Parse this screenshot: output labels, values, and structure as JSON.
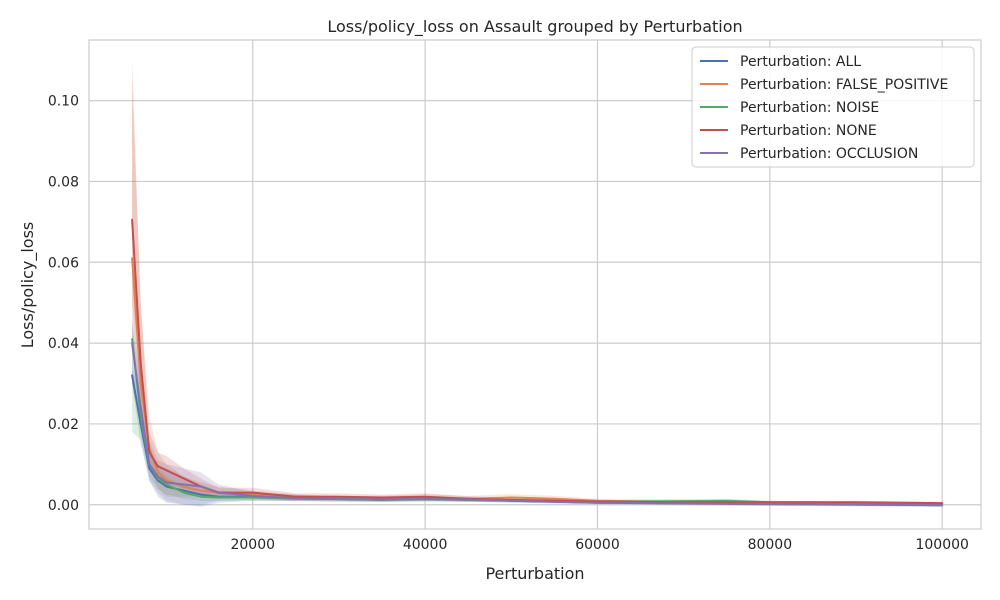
{
  "chart_data": {
    "type": "line",
    "title": "Loss/policy_loss on Assault grouped by Perturbation",
    "xlabel": "Perturbation",
    "ylabel": "Loss/policy_loss",
    "xlim": [
      1000,
      104500
    ],
    "ylim": [
      -0.006,
      0.115
    ],
    "xticks": [
      20000,
      40000,
      60000,
      80000,
      100000
    ],
    "xtick_labels": [
      "20000",
      "40000",
      "60000",
      "80000",
      "100000"
    ],
    "yticks": [
      0.0,
      0.02,
      0.04,
      0.06,
      0.08,
      0.1
    ],
    "ytick_labels": [
      "0.00",
      "0.02",
      "0.04",
      "0.06",
      "0.08",
      "0.10"
    ],
    "grid": true,
    "legend_position": "top-right",
    "series": [
      {
        "name": "Perturbation: ALL",
        "color": "#4c72b0",
        "x": [
          6000,
          7000,
          8000,
          9000,
          10000,
          12000,
          14000,
          16000,
          20000,
          25000,
          30000,
          35000,
          40000,
          45000,
          50000,
          60000,
          70000,
          80000,
          90000,
          100000
        ],
        "y": [
          0.032,
          0.02,
          0.009,
          0.006,
          0.0045,
          0.0035,
          0.0025,
          0.002,
          0.002,
          0.0018,
          0.0015,
          0.0012,
          0.0015,
          0.0012,
          0.001,
          0.0005,
          0.0004,
          0.0002,
          0.0001,
          -0.0001
        ],
        "lower": [
          0.03,
          0.015,
          0.006,
          0.002,
          0.0005,
          0.0,
          -0.0005,
          0.0005,
          0.001,
          0.001,
          0.001,
          0.0008,
          0.001,
          0.0008,
          0.0006,
          0.0002,
          0.0001,
          -0.0001,
          -0.0002,
          -0.0004
        ],
        "upper": [
          0.034,
          0.026,
          0.013,
          0.01,
          0.009,
          0.007,
          0.005,
          0.0035,
          0.003,
          0.0025,
          0.002,
          0.0016,
          0.002,
          0.0016,
          0.0014,
          0.0008,
          0.0007,
          0.0005,
          0.0004,
          0.0002
        ]
      },
      {
        "name": "Perturbation: FALSE_POSITIVE",
        "color": "#dd8452",
        "x": [
          6000,
          7000,
          8000,
          9000,
          10000,
          12000,
          14000,
          16000,
          20000,
          25000,
          30000,
          35000,
          40000,
          45000,
          50000,
          55000,
          60000,
          70000,
          80000,
          90000,
          100000
        ],
        "y": [
          0.061,
          0.03,
          0.014,
          0.008,
          0.006,
          0.0045,
          0.0035,
          0.003,
          0.0025,
          0.0018,
          0.0015,
          0.0015,
          0.0018,
          0.0015,
          0.0018,
          0.0015,
          0.001,
          0.0007,
          0.0005,
          0.0005,
          0.0003
        ],
        "lower": [
          0.04,
          0.02,
          0.009,
          0.004,
          0.002,
          0.002,
          0.002,
          0.0018,
          0.0015,
          0.001,
          0.0008,
          0.0008,
          0.001,
          0.0008,
          0.001,
          0.0008,
          0.0005,
          0.0002,
          0.0001,
          0.0001,
          0.0
        ],
        "upper": [
          0.105,
          0.05,
          0.022,
          0.013,
          0.01,
          0.007,
          0.0055,
          0.0045,
          0.0035,
          0.0026,
          0.0022,
          0.0022,
          0.0026,
          0.0022,
          0.0026,
          0.0022,
          0.0015,
          0.0012,
          0.0009,
          0.0009,
          0.0006
        ]
      },
      {
        "name": "Perturbation: NOISE",
        "color": "#55a868",
        "x": [
          6000,
          7000,
          8000,
          9000,
          10000,
          12000,
          14000,
          16000,
          20000,
          25000,
          30000,
          35000,
          40000,
          45000,
          50000,
          60000,
          70000,
          75000,
          80000,
          90000,
          100000
        ],
        "y": [
          0.041,
          0.022,
          0.01,
          0.0065,
          0.005,
          0.003,
          0.002,
          0.0018,
          0.0018,
          0.0015,
          0.0014,
          0.0012,
          0.0014,
          0.0012,
          0.001,
          0.0007,
          0.0009,
          0.001,
          0.0006,
          0.0004,
          0.0002
        ],
        "lower": [
          0.018,
          0.016,
          0.007,
          0.004,
          0.0025,
          0.0015,
          0.001,
          0.001,
          0.001,
          0.0009,
          0.0008,
          0.0007,
          0.0008,
          0.0007,
          0.0006,
          0.0003,
          0.0004,
          0.0005,
          0.0002,
          0.0001,
          -0.0001
        ],
        "upper": [
          0.045,
          0.028,
          0.014,
          0.009,
          0.007,
          0.0045,
          0.003,
          0.0026,
          0.0026,
          0.0022,
          0.002,
          0.0018,
          0.002,
          0.0018,
          0.0015,
          0.0011,
          0.0014,
          0.0015,
          0.001,
          0.0007,
          0.0005
        ]
      },
      {
        "name": "Perturbation: NONE",
        "color": "#c44e52",
        "x": [
          6000,
          7000,
          8000,
          9000,
          10000,
          12000,
          14000,
          16000,
          20000,
          25000,
          30000,
          35000,
          40000,
          45000,
          50000,
          60000,
          70000,
          80000,
          90000,
          100000
        ],
        "y": [
          0.0705,
          0.035,
          0.013,
          0.0095,
          0.0085,
          0.0065,
          0.0045,
          0.003,
          0.003,
          0.002,
          0.002,
          0.0018,
          0.002,
          0.0015,
          0.0012,
          0.0008,
          0.0006,
          0.0006,
          0.0006,
          0.0004
        ],
        "lower": [
          0.05,
          0.025,
          0.009,
          0.006,
          0.005,
          0.004,
          0.0028,
          0.0018,
          0.0018,
          0.0012,
          0.0012,
          0.0011,
          0.0012,
          0.0009,
          0.0007,
          0.0004,
          0.0002,
          0.0002,
          0.0002,
          0.0001
        ],
        "upper": [
          0.11,
          0.05,
          0.018,
          0.013,
          0.012,
          0.009,
          0.0065,
          0.0042,
          0.0042,
          0.0028,
          0.0028,
          0.0025,
          0.0028,
          0.0021,
          0.0017,
          0.0012,
          0.001,
          0.001,
          0.001,
          0.0007
        ]
      },
      {
        "name": "Perturbation: OCCLUSION",
        "color": "#8172b3",
        "x": [
          6000,
          7000,
          8000,
          9000,
          10000,
          12000,
          14000,
          16000,
          20000,
          25000,
          30000,
          35000,
          40000,
          45000,
          50000,
          60000,
          70000,
          80000,
          90000,
          100000
        ],
        "y": [
          0.04,
          0.024,
          0.01,
          0.007,
          0.0055,
          0.005,
          0.0045,
          0.003,
          0.0022,
          0.0016,
          0.0014,
          0.0013,
          0.0014,
          0.0013,
          0.001,
          0.0005,
          0.0003,
          0.0001,
          0.0,
          -0.0001
        ],
        "lower": [
          0.03,
          0.018,
          0.006,
          0.003,
          0.001,
          0.0,
          0.0,
          0.001,
          0.0012,
          0.0009,
          0.0008,
          0.0007,
          0.0008,
          0.0007,
          0.0005,
          0.0001,
          -0.0001,
          -0.0003,
          -0.0004,
          -0.0005
        ],
        "upper": [
          0.046,
          0.03,
          0.016,
          0.011,
          0.01,
          0.009,
          0.008,
          0.005,
          0.0032,
          0.0024,
          0.002,
          0.0019,
          0.002,
          0.0019,
          0.0015,
          0.0009,
          0.0007,
          0.0005,
          0.0004,
          0.0003
        ]
      }
    ]
  }
}
